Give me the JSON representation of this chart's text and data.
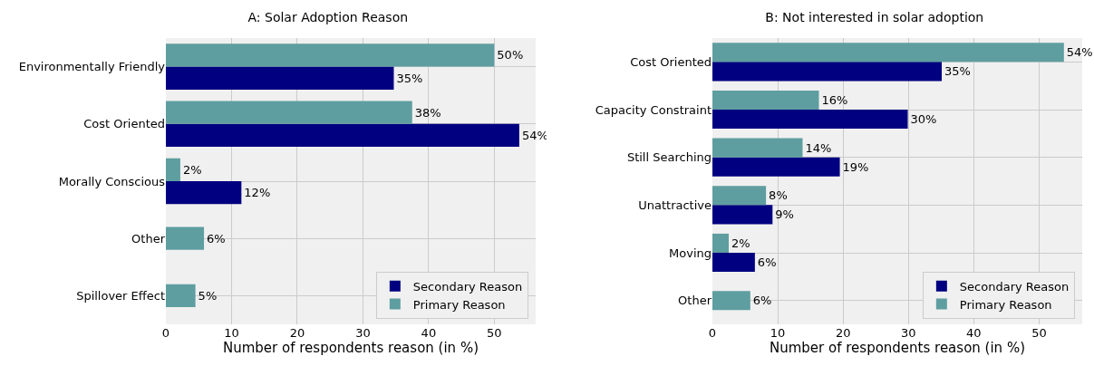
{
  "chart_data": [
    {
      "type": "bar",
      "orientation": "horizontal",
      "title": "A: Solar Adoption Reason",
      "xlabel": "Number of respondents reason (in %)",
      "categories": [
        "Environmentally Friendly",
        "Cost Oriented",
        "Morally Conscious",
        "Other",
        "Spillover Effect"
      ],
      "series": [
        {
          "name": "Secondary Reason",
          "color": "#000080",
          "values": [
            34.7,
            53.8,
            11.5,
            null,
            null
          ],
          "value_labels": [
            "35%",
            "54%",
            "12%",
            null,
            null
          ]
        },
        {
          "name": "Primary Reason",
          "color": "#5f9ea0",
          "values": [
            50,
            37.5,
            2.2,
            5.8,
            4.5
          ],
          "value_labels": [
            "50%",
            "38%",
            "2%",
            "6%",
            "5%"
          ]
        }
      ],
      "xlim": [
        0,
        56.3
      ],
      "xticks": [
        0,
        10,
        20,
        30,
        40,
        50
      ],
      "grid": true,
      "legend": "bottom right"
    },
    {
      "type": "bar",
      "orientation": "horizontal",
      "title": "B: Not interested in solar adoption",
      "xlabel": "Number of respondents reason (in %)",
      "categories": [
        "Cost Oriented",
        "Capacity Constraint",
        "Still Searching",
        "Unattractive",
        "Moving",
        "Other"
      ],
      "series": [
        {
          "name": "Secondary Reason",
          "color": "#000080",
          "values": [
            35.1,
            29.9,
            19.5,
            9.2,
            6.5,
            null
          ],
          "value_labels": [
            "35%",
            "30%",
            "19%",
            "9%",
            "6%",
            null
          ]
        },
        {
          "name": "Primary Reason",
          "color": "#5f9ea0",
          "values": [
            53.8,
            16.3,
            13.8,
            8.2,
            2.5,
            5.8
          ],
          "value_labels": [
            "54%",
            "16%",
            "14%",
            "8%",
            "2%",
            "6%"
          ]
        }
      ],
      "xlim": [
        0,
        56.6
      ],
      "xticks": [
        0,
        10,
        20,
        30,
        40,
        50
      ],
      "grid": true,
      "legend": "bottom right"
    }
  ]
}
